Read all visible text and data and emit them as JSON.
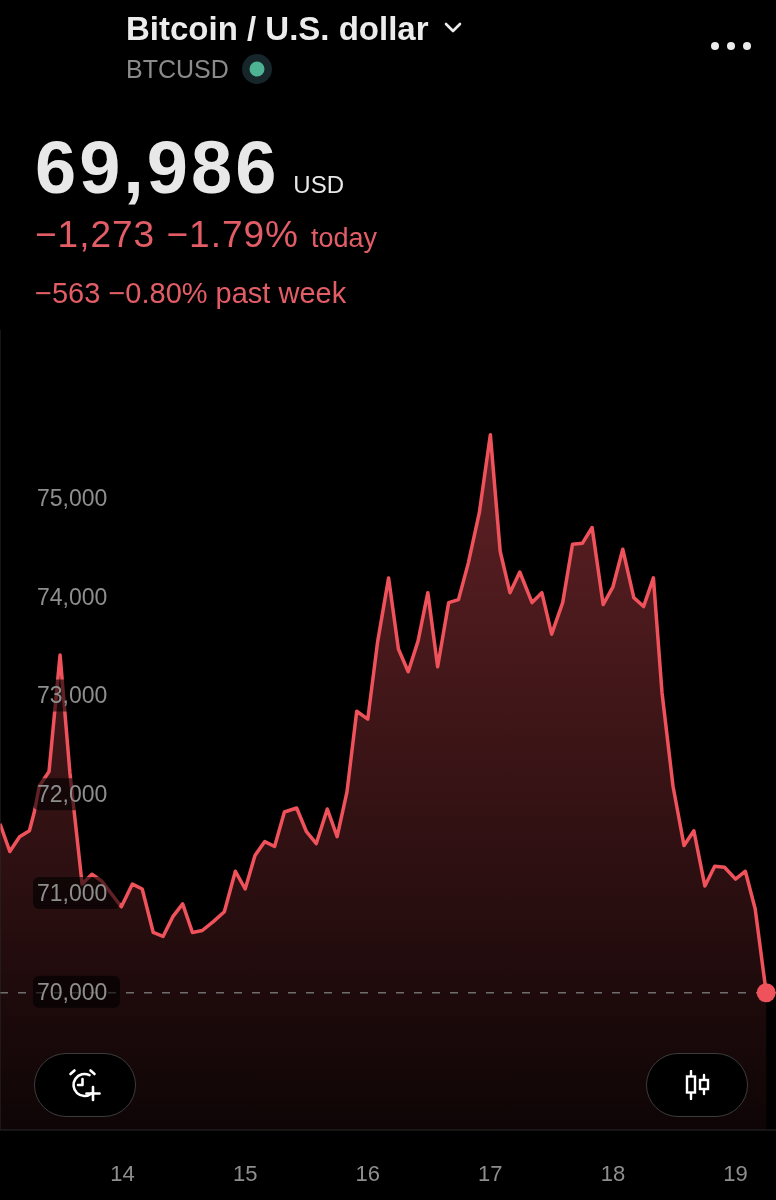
{
  "chart_data": {
    "type": "area",
    "title": "Bitcoin / U.S. dollar",
    "subtitle": "BTCUSD",
    "annotations": [
      "69,986",
      "USD",
      "−1,273 −1.79%",
      "today",
      "−563 −0.80% past week"
    ],
    "x": [
      13.0,
      13.08,
      13.16,
      13.24,
      13.28,
      13.32,
      13.4,
      13.49,
      13.57,
      13.67,
      13.75,
      13.83,
      13.99,
      14.08,
      14.16,
      14.25,
      14.33,
      14.41,
      14.49,
      14.57,
      14.65,
      14.74,
      14.83,
      14.92,
      15.0,
      15.08,
      15.16,
      15.24,
      15.32,
      15.42,
      15.5,
      15.58,
      15.67,
      15.75,
      15.83,
      15.91,
      16.0,
      16.08,
      16.17,
      16.25,
      16.33,
      16.41,
      16.49,
      16.57,
      16.66,
      16.74,
      16.82,
      16.91,
      17.0,
      17.08,
      17.16,
      17.24,
      17.34,
      17.42,
      17.5,
      17.59,
      17.67,
      17.75,
      17.83,
      17.92,
      18.0,
      18.08,
      18.17,
      18.25,
      18.33,
      18.4,
      18.49,
      18.58,
      18.66,
      18.75,
      18.83,
      18.91,
      19.0,
      19.08,
      19.16,
      19.25
    ],
    "series": [
      {
        "color": "#f0525b",
        "values": [
          71700,
          71420,
          71570,
          71630,
          71820,
          72080,
          72230,
          73410,
          72220,
          71090,
          71190,
          71120,
          70860,
          71090,
          71040,
          70600,
          70560,
          70760,
          70890,
          70600,
          70620,
          70710,
          70810,
          71220,
          71040,
          71380,
          71520,
          71470,
          71820,
          71860,
          71620,
          71500,
          71850,
          71570,
          72020,
          72840,
          72760,
          73540,
          74190,
          73470,
          73240,
          73550,
          74040,
          73290,
          73940,
          73970,
          74340,
          74850,
          75640,
          74460,
          74040,
          74250,
          73940,
          74040,
          73620,
          73940,
          74530,
          74540,
          74700,
          73920,
          74100,
          74480,
          73990,
          73900,
          74190,
          73030,
          72080,
          71480,
          71630,
          71070,
          71270,
          71260,
          71140,
          71220,
          70840,
          69990
        ]
      },
      {
        "type": "scatter",
        "color": "#f0525b",
        "marker": "circle",
        "x": [
          19.25
        ],
        "values": [
          69990
        ]
      }
    ],
    "xlim": [
      13,
      19.33
    ],
    "xticks": [
      14,
      15,
      16,
      17,
      18,
      19
    ],
    "ylim": [
      68600,
      76700
    ],
    "yticks": [
      {
        "value": 70000,
        "label": "70,000"
      },
      {
        "value": 71000,
        "label": "71,000"
      },
      {
        "value": 72000,
        "label": "72,000"
      },
      {
        "value": 73000,
        "label": "73,000"
      },
      {
        "value": 74000,
        "label": "74,000"
      },
      {
        "value": 75000,
        "label": "75,000"
      }
    ],
    "ref_lines": [
      {
        "axis": "y",
        "value": 69990,
        "line_style": "dashed",
        "color": "#6e6e6e"
      }
    ]
  }
}
